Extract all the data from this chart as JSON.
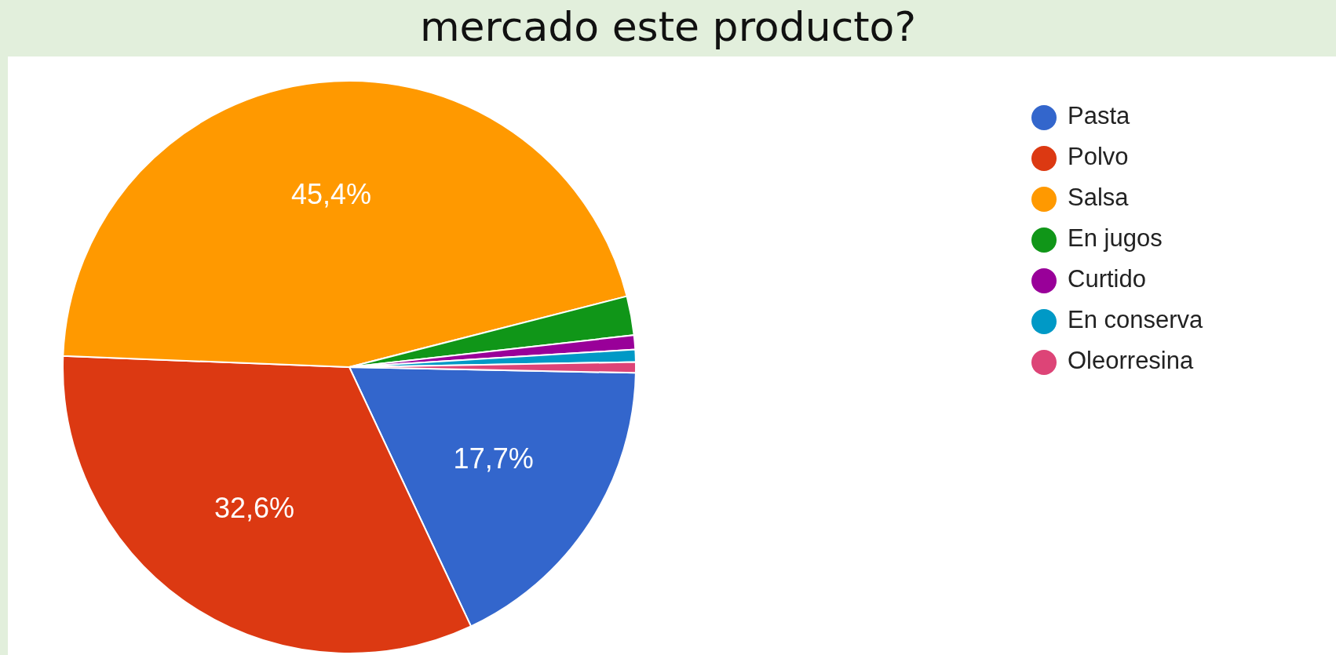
{
  "chart_data": {
    "type": "pie",
    "title": "mercado este producto?",
    "categories": [
      "Pasta",
      "Polvo",
      "Salsa",
      "En jugos",
      "Curtido",
      "En conserva",
      "Oleorresina"
    ],
    "values": [
      17.7,
      32.6,
      45.4,
      2.2,
      0.8,
      0.7,
      0.6
    ],
    "colors": [
      "#3366cc",
      "#dc3912",
      "#ff9900",
      "#109618",
      "#990099",
      "#0099c6",
      "#dd4477"
    ],
    "value_labels": [
      "17,7%",
      "32,6%",
      "45,4%",
      null,
      null,
      null,
      null
    ],
    "legend": "right"
  }
}
